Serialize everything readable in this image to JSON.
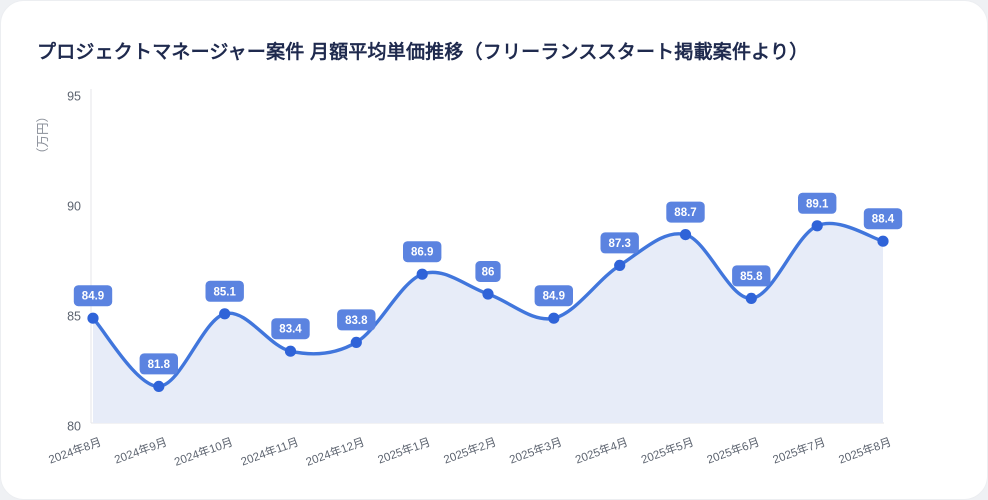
{
  "page": {
    "background_color": "#eff1f4",
    "card_background_color": "#ffffff"
  },
  "header": {
    "title": "プロジェクトマネージャー案件 月額平均単価推移（フリーランススタート掲載案件より）"
  },
  "chart_data": {
    "type": "line",
    "title": "プロジェクトマネージャー案件 月額平均単価推移（フリーランススタート掲載案件より）",
    "categories": [
      "2024年8月",
      "2024年9月",
      "2024年10月",
      "2024年11月",
      "2024年12月",
      "2025年1月",
      "2025年2月",
      "2025年3月",
      "2025年4月",
      "2025年5月",
      "2025年6月",
      "2025年7月",
      "2025年8月"
    ],
    "values": [
      84.9,
      81.8,
      85.1,
      83.4,
      83.8,
      86.9,
      86,
      84.9,
      87.3,
      88.7,
      85.8,
      89.1,
      88.4
    ],
    "ylabel": "（万円）",
    "xlabel": "",
    "ylim": [
      80,
      95
    ],
    "yticks": [
      80,
      85,
      90,
      95
    ],
    "grid": false,
    "smooth": true,
    "area": true,
    "data_labels": true,
    "x_tick_rotation_deg": -20,
    "legend": "none",
    "colors": {
      "line": "#4176dc",
      "point": "#2f63d8",
      "area": "#e7ecf8",
      "badge_background": "#5b83e0",
      "badge_text": "#ffffff",
      "axis_line": "#e4e6ea",
      "tick_text": "#5d6470",
      "unit_label_text": "#8a8f99"
    }
  }
}
